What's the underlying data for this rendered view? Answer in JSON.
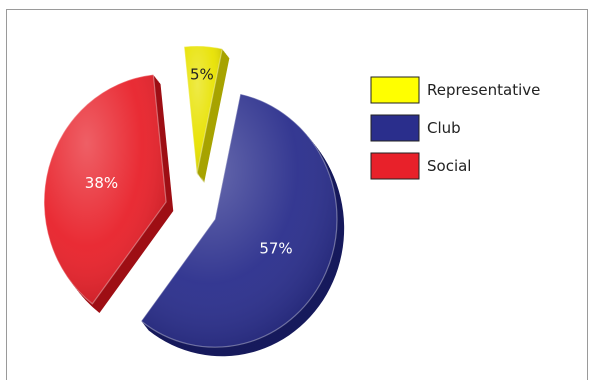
{
  "chart_data": {
    "type": "pie",
    "style": "3d-exploded",
    "slices": [
      {
        "name": "Representative",
        "value": 5,
        "label": "5%",
        "color": "#e8e200",
        "dark": "#a7a300",
        "label_color": "#222222"
      },
      {
        "name": "Club",
        "value": 57,
        "label": "57%",
        "color": "#2a2e8c",
        "dark": "#171a5c",
        "label_color": "#ffffff"
      },
      {
        "name": "Social",
        "value": 38,
        "label": "38%",
        "color": "#e8212a",
        "dark": "#9e0f15",
        "label_color": "#ffffff"
      }
    ],
    "legend": {
      "placement": "top-right",
      "entries": [
        {
          "name": "Representative",
          "color": "#ffff00"
        },
        {
          "name": "Club",
          "color": "#2a2e8c"
        },
        {
          "name": "Social",
          "color": "#e8212a"
        }
      ]
    }
  }
}
